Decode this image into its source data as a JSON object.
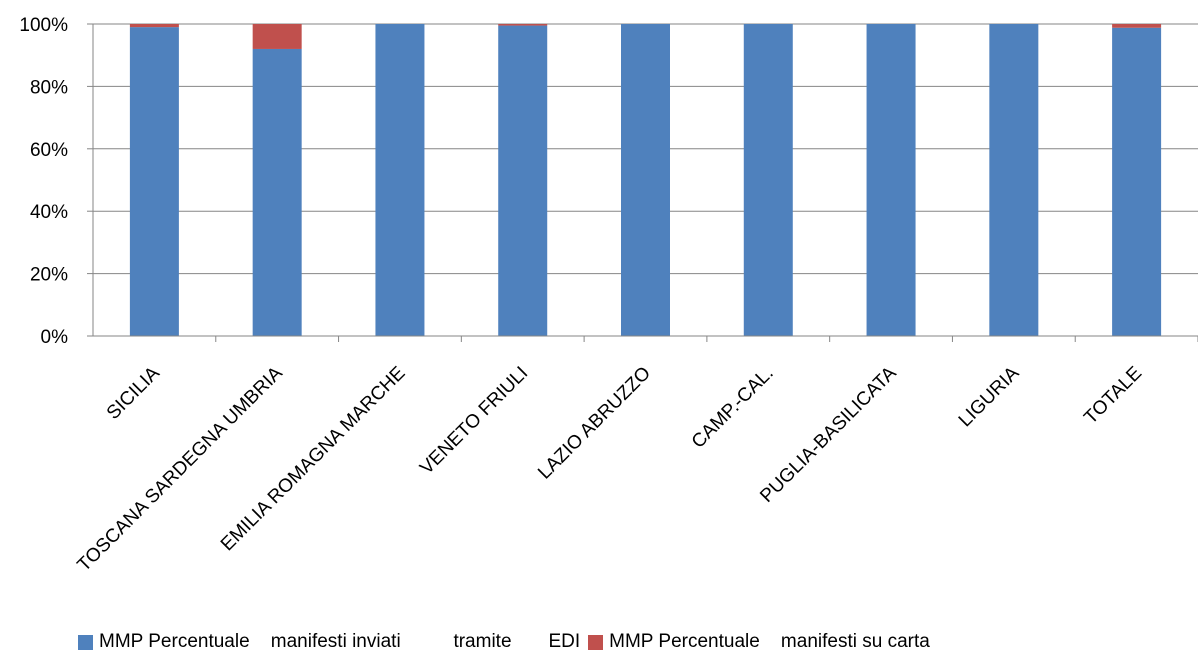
{
  "chart_data": {
    "type": "bar",
    "stacked": true,
    "percent": true,
    "title": "",
    "xlabel": "",
    "ylabel": "",
    "ylim": [
      0,
      100
    ],
    "yticks": [
      "0%",
      "20%",
      "40%",
      "60%",
      "80%",
      "100%"
    ],
    "categories": [
      "SICILIA",
      "TOSCANA SARDEGNA UMBRIA",
      "EMILIA ROMAGNA MARCHE",
      "VENETO FRIULI",
      "LAZIO ABRUZZO",
      "CAMP.-CAL.",
      "PUGLIA-BASILICATA",
      "LIGURIA",
      "TOTALE"
    ],
    "series": [
      {
        "name": "MMP Percentuale    manifesti inviati          tramite       EDI",
        "color": "#4F81BD",
        "values": [
          99,
          92,
          100,
          99.5,
          100,
          100,
          100,
          100,
          98.8
        ]
      },
      {
        "name": "MMP Percentuale    manifesti su carta",
        "color": "#C0504D",
        "values": [
          1,
          8,
          0,
          0.5,
          0,
          0,
          0,
          0,
          1.2
        ]
      }
    ],
    "grid": true,
    "legend_position": "bottom"
  }
}
